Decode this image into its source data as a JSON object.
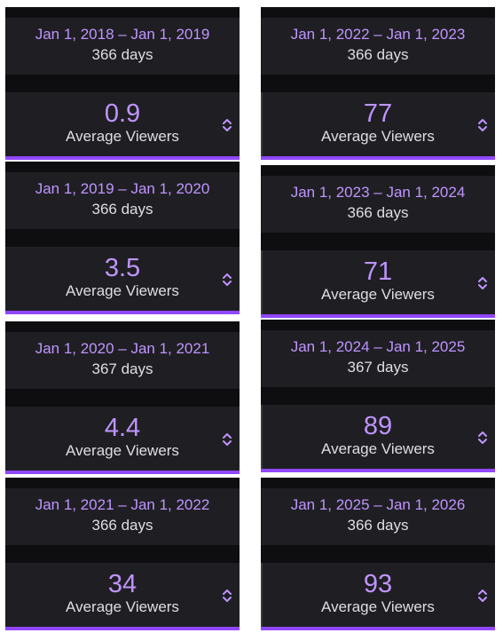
{
  "accent_color": "#bf94ff",
  "underline_color": "#9147ff",
  "panels": [
    {
      "range": "Jan 1, 2018 – Jan 1, 2019",
      "days": "366 days",
      "value": "0.9",
      "label": "Average Viewers",
      "icon": "sort-icon"
    },
    {
      "range": "Jan 1, 2022 – Jan 1, 2023",
      "days": "366 days",
      "value": "77",
      "label": "Average Viewers",
      "icon": "sort-icon"
    },
    {
      "range": "Jan 1, 2019 – Jan 1, 2020",
      "days": "366 days",
      "value": "3.5",
      "label": "Average Viewers",
      "icon": "sort-icon"
    },
    {
      "range": "Jan 1, 2023 – Jan 1, 2024",
      "days": "366 days",
      "value": "71",
      "label": "Average Viewers",
      "icon": "sort-icon"
    },
    {
      "range": "Jan 1, 2020 – Jan 1, 2021",
      "days": "367 days",
      "value": "4.4",
      "label": "Average Viewers",
      "icon": "sort-icon"
    },
    {
      "range": "Jan 1, 2024 – Jan 1, 2025",
      "days": "367 days",
      "value": "89",
      "label": "Average Viewers",
      "icon": "sort-icon"
    },
    {
      "range": "Jan 1, 2021 – Jan 1, 2022",
      "days": "366 days",
      "value": "34",
      "label": "Average Viewers",
      "icon": "sort-icon"
    },
    {
      "range": "Jan 1, 2025 – Jan 1, 2026",
      "days": "366 days",
      "value": "93",
      "label": "Average Viewers",
      "icon": "sort-icon"
    }
  ]
}
